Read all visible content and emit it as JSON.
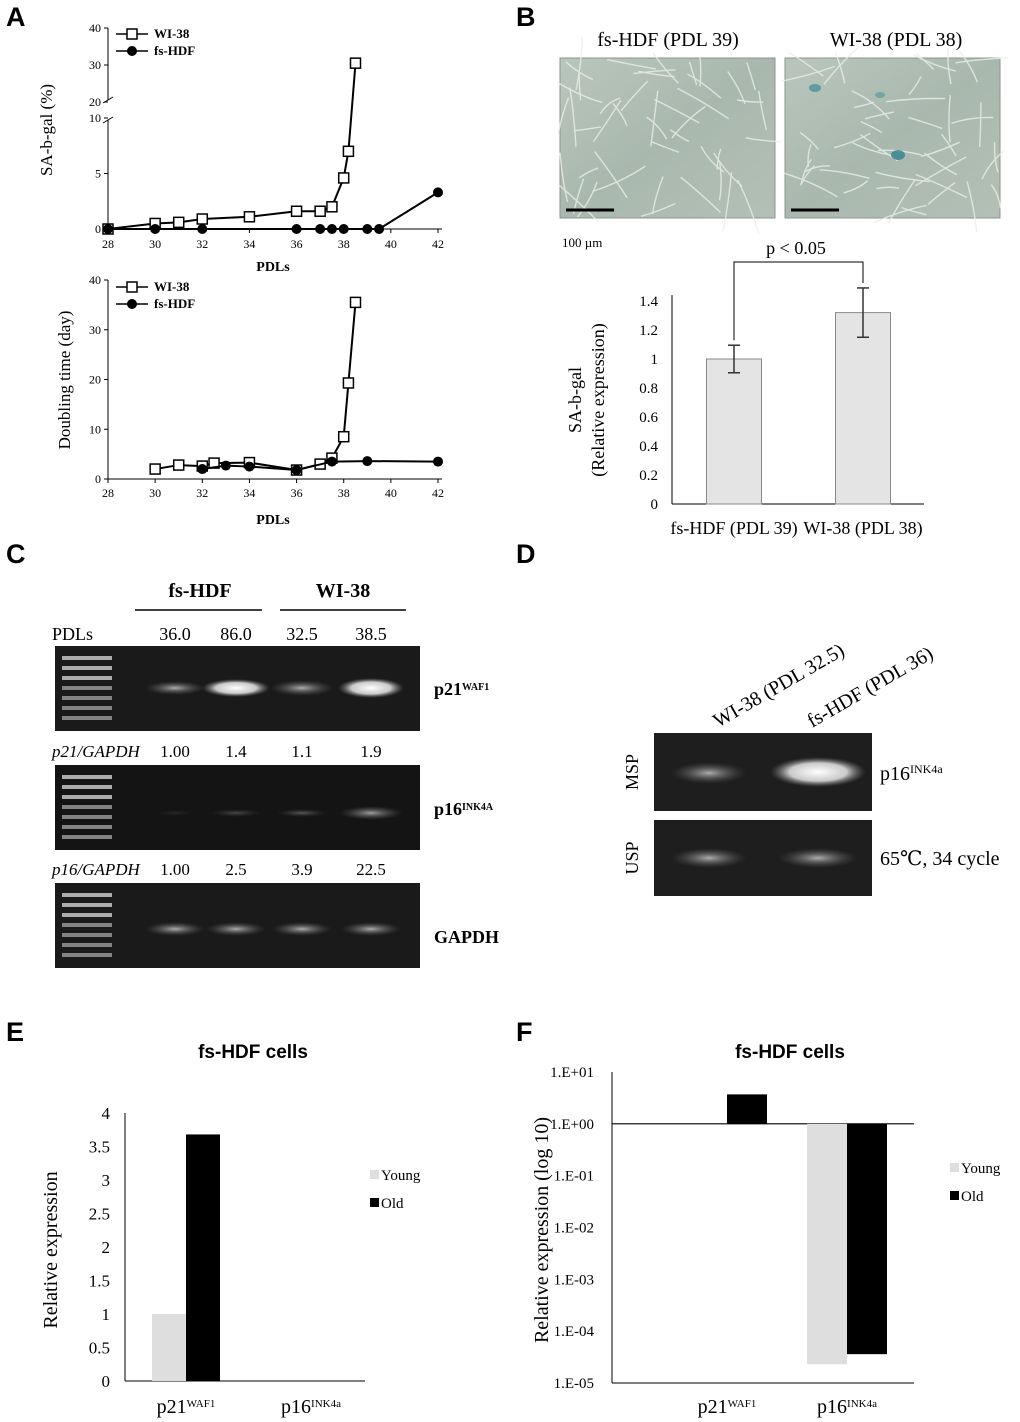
{
  "panels": {
    "a": "A",
    "b": "B",
    "c": "C",
    "d": "D",
    "e": "E",
    "f": "F"
  },
  "chart_data": [
    {
      "id": "A_top",
      "type": "line",
      "ylabel": "SA-b-gal (%)",
      "xlabel": "PDLs",
      "x_ticks": [
        28,
        30,
        32,
        34,
        36,
        38,
        40,
        42
      ],
      "y_ticks_lower": [
        0,
        5,
        10
      ],
      "y_ticks_upper": [
        20,
        30,
        40
      ],
      "axis_break": [
        10,
        20
      ],
      "series": [
        {
          "name": "WI-38",
          "marker": "open-square",
          "x": [
            28,
            30,
            31,
            32,
            34,
            36,
            37,
            37.5,
            38,
            38.2,
            38.5
          ],
          "y": [
            0,
            0.5,
            0.6,
            0.9,
            1.1,
            1.6,
            1.6,
            2.0,
            4.6,
            7.0,
            30.5
          ]
        },
        {
          "name": "fs-HDF",
          "marker": "filled-circle",
          "x": [
            28,
            30,
            32,
            36,
            37,
            37.5,
            38,
            39,
            39.5,
            42
          ],
          "y": [
            0,
            0,
            0,
            0,
            0,
            0,
            0,
            0,
            0,
            3.3
          ]
        }
      ]
    },
    {
      "id": "A_bottom",
      "type": "line",
      "ylabel": "Doubling time (day)",
      "xlabel": "PDLs",
      "x_ticks": [
        28,
        30,
        32,
        34,
        36,
        38,
        40,
        42
      ],
      "y_ticks": [
        0,
        10,
        20,
        30,
        40
      ],
      "ylim": [
        0,
        40
      ],
      "series": [
        {
          "name": "WI-38",
          "marker": "open-square",
          "x": [
            30,
            31,
            32,
            32.5,
            34,
            36,
            37,
            37.5,
            38,
            38.2,
            38.5
          ],
          "y": [
            2.0,
            2.8,
            2.6,
            3.2,
            3.3,
            1.8,
            3.0,
            4.2,
            8.5,
            19.3,
            35.5
          ]
        },
        {
          "name": "fs-HDF",
          "marker": "filled-circle",
          "x": [
            32,
            33,
            34,
            36,
            37.5,
            39,
            42
          ],
          "y": [
            2.0,
            2.7,
            2.5,
            1.8,
            3.5,
            3.6,
            3.5
          ]
        }
      ]
    },
    {
      "id": "B",
      "type": "bar",
      "ylabel_lines": [
        "SA-b-gal",
        "(Relative expression)"
      ],
      "categories": [
        "fs-HDF (PDL 39)",
        "WI-38 (PDL 38)"
      ],
      "values": [
        1.0,
        1.32
      ],
      "errors": [
        0.095,
        0.17
      ],
      "ylim": [
        0,
        1.4
      ],
      "y_ticks": [
        "0",
        "0.2",
        "0.4",
        "0.6",
        "0.8",
        "1",
        "1.2",
        "1.4"
      ],
      "annotation": "p < 0.05"
    },
    {
      "id": "E",
      "type": "bar",
      "title": "fs-HDF cells",
      "ylabel": "Relative expression",
      "categories": [
        "p21",
        "p16"
      ],
      "category_sup": [
        "WAF1",
        "INK4a"
      ],
      "series": [
        {
          "name": "Young",
          "color": "#dedede",
          "values": [
            1.0,
            0
          ]
        },
        {
          "name": "Old",
          "color": "#000000",
          "values": [
            3.68,
            0
          ]
        }
      ],
      "ylim": [
        0,
        4
      ],
      "y_ticks": [
        "0",
        "0.5",
        "1",
        "1.5",
        "2",
        "2.5",
        "3",
        "3.5",
        "4"
      ]
    },
    {
      "id": "F",
      "type": "bar",
      "title": "fs-HDF cells",
      "ylabel": "Relative expression (log 10)",
      "yscale": "log",
      "categories": [
        "p21",
        "p16"
      ],
      "category_sup": [
        "WAF1",
        "INK4a"
      ],
      "series": [
        {
          "name": "Young",
          "color": "#dedede",
          "values": [
            1.0,
            2.3e-05
          ]
        },
        {
          "name": "Old",
          "color": "#000000",
          "values": [
            3.7,
            3.6e-05
          ]
        }
      ],
      "y_ticks": [
        "1.E+01",
        "1.E+00",
        "1.E-01",
        "1.E-02",
        "1.E-03",
        "1.E-04",
        "1.E-05"
      ]
    }
  ],
  "panelB_images": {
    "left_title": "fs-HDF (PDL 39)",
    "right_title": "WI-38 (PDL 38)",
    "scale_label": "100 µm"
  },
  "panelC": {
    "group_left": "fs-HDF",
    "group_right": "WI-38",
    "pdls_label": "PDLs",
    "pdls": [
      "36.0",
      "86.0",
      "32.5",
      "38.5"
    ],
    "gel1_label": "p21",
    "gel1_sup": "WAF1",
    "ratio1_label": "p21/GAPDH",
    "ratio1": [
      "1.00",
      "1.4",
      "1.1",
      "1.9"
    ],
    "gel2_label": "p16",
    "gel2_sup": "INK4A",
    "ratio2_label": "p16/GAPDH",
    "ratio2": [
      "1.00",
      "2.5",
      "3.9",
      "22.5"
    ],
    "gel3_label": "GAPDH"
  },
  "panelD": {
    "lane1": "WI-38 (PDL 32.5)",
    "lane2": "fs-HDF (PDL 36)",
    "row1": "MSP",
    "row2": "USP",
    "gel1_label": "p16",
    "gel1_sup": "INK4a",
    "gel2_label": "65℃, 34 cycle"
  }
}
